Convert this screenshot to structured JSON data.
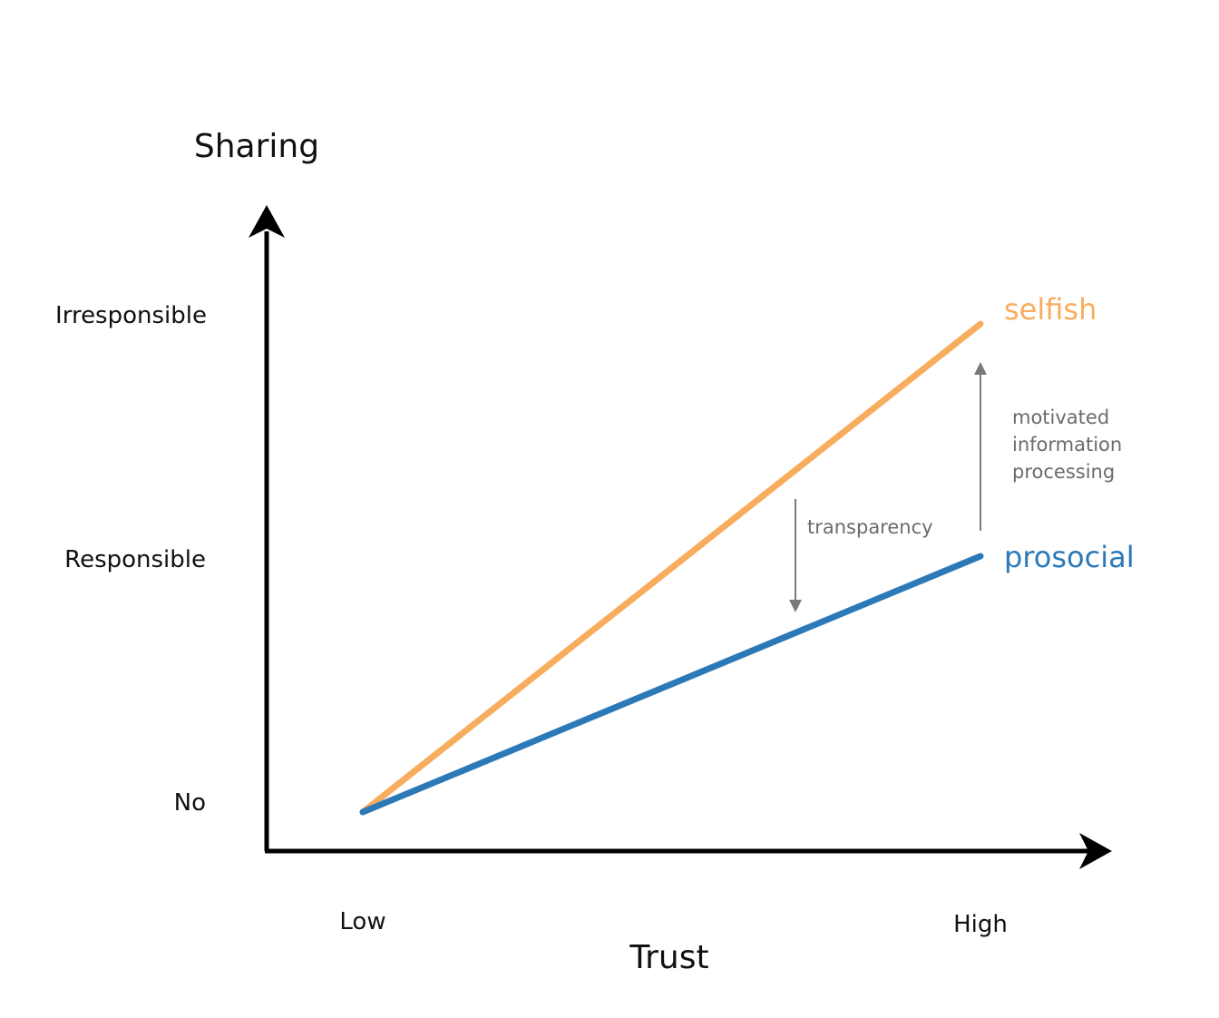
{
  "chart_data": {
    "type": "line",
    "ylabel": "Sharing",
    "xlabel": "Trust",
    "x_categories": [
      "Low",
      "High"
    ],
    "y_levels": [
      "No",
      "Responsible",
      "Irresponsible"
    ],
    "series": [
      {
        "name": "selfish",
        "color": "#f8ad5e",
        "points": [
          [
            "Low",
            "No"
          ],
          [
            "High",
            "Irresponsible"
          ]
        ]
      },
      {
        "name": "prosocial",
        "color": "#2c79b8",
        "points": [
          [
            "Low",
            "No"
          ],
          [
            "High",
            "Responsible"
          ]
        ]
      }
    ],
    "annotations": [
      {
        "lines": [
          "transparency"
        ],
        "color": "#6b6b6b",
        "arrow": "down"
      },
      {
        "lines": [
          "motivated",
          "information",
          "processing"
        ],
        "color": "#6b6b6b",
        "arrow": "up"
      }
    ],
    "grid": false,
    "legend": "none"
  }
}
